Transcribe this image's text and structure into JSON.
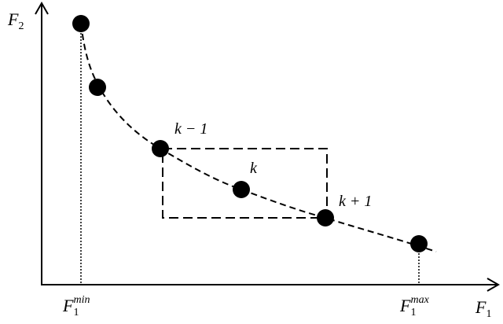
{
  "axes": {
    "y_label": {
      "main": "F",
      "sub": "2"
    },
    "x_label": {
      "main": "F",
      "sub": "1"
    }
  },
  "markers": {
    "min": {
      "main": "F",
      "sub": "1",
      "sup": "min"
    },
    "max": {
      "main": "F",
      "sub": "1",
      "sup": "max"
    }
  },
  "points": {
    "prev": "k − 1",
    "current": "k",
    "next": "k + 1"
  }
}
